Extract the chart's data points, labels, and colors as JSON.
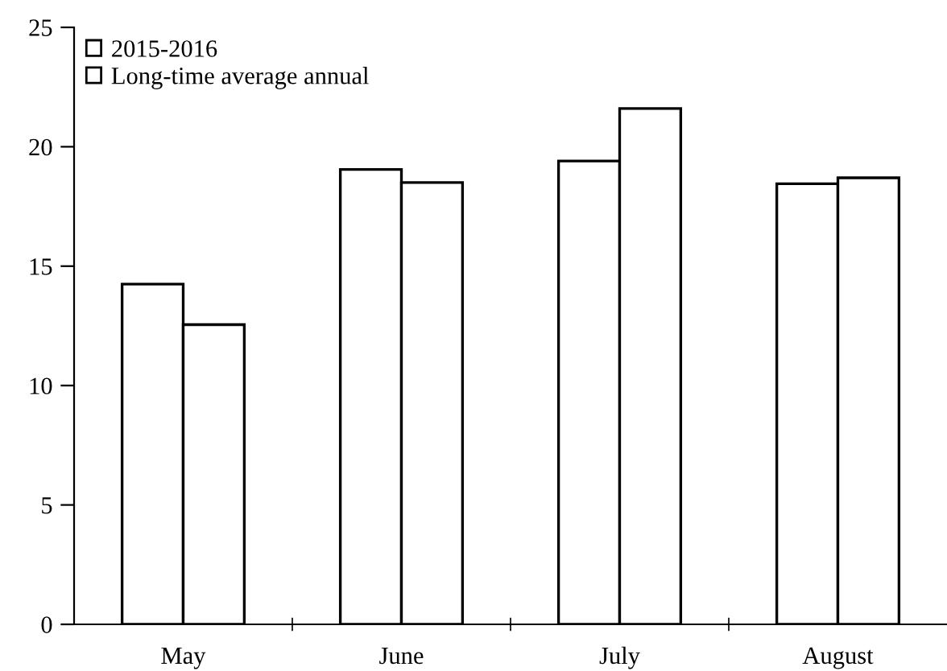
{
  "chart_data": {
    "type": "bar",
    "categories": [
      "May",
      "June",
      "July",
      "August"
    ],
    "series": [
      {
        "name": "2015-2016",
        "color": "#ffffff",
        "values": [
          14.25,
          19.05,
          19.4,
          18.45
        ]
      },
      {
        "name": "Long-time average annual",
        "color": "#ffffff",
        "values": [
          12.55,
          18.5,
          21.6,
          18.7
        ]
      }
    ],
    "ylim": [
      0,
      25
    ],
    "yticks": [
      0,
      5,
      10,
      15,
      20,
      25
    ],
    "grid": false,
    "legend": "top left"
  }
}
